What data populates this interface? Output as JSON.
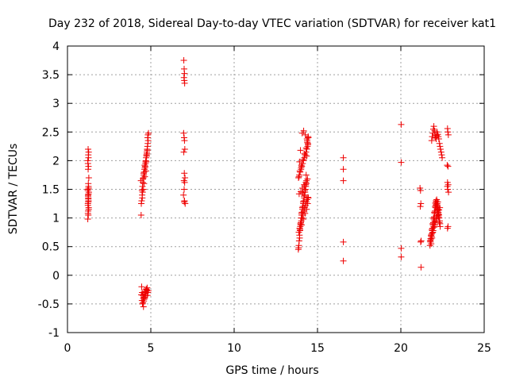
{
  "chart_data": {
    "type": "scatter",
    "title": "Day 232 of 2018, Sidereal Day-to-day VTEC variation (SDTVAR) for receiver kat1",
    "xlabel": "GPS time / hours",
    "ylabel": "SDTVAR / TECUs",
    "xlim": [
      0,
      25
    ],
    "ylim": [
      -1,
      4
    ],
    "x_ticks": [
      0,
      5,
      10,
      15,
      20,
      25
    ],
    "y_ticks": [
      -1,
      -0.5,
      0,
      0.5,
      1,
      1.5,
      2,
      2.5,
      3,
      3.5,
      4
    ],
    "x_tick_labels": [
      "0",
      "5",
      "10",
      "15",
      "20",
      "25"
    ],
    "y_tick_labels": [
      "-1",
      "-0.5",
      "0",
      "0.5",
      "1",
      "1.5",
      "2",
      "2.5",
      "3",
      "3.5",
      "4"
    ],
    "grid": true,
    "marker": "plus",
    "color": "#ee0000",
    "series": [
      {
        "name": "SDTVAR",
        "x": [
          1.22,
          1.25,
          1.24,
          1.27,
          1.23,
          1.26,
          1.25,
          1.24,
          1.28,
          1.22,
          1.26,
          1.25,
          1.23,
          1.27,
          1.24,
          1.26,
          1.22,
          1.25,
          1.28,
          1.24,
          1.23,
          1.26,
          1.25,
          1.27,
          1.24,
          1.22,
          1.26,
          1.25,
          1.23,
          1.27,
          4.42,
          4.45,
          4.48,
          4.5,
          4.52,
          4.47,
          4.55,
          4.58,
          4.53,
          4.6,
          4.62,
          4.57,
          4.65,
          4.63,
          4.68,
          4.7,
          4.66,
          4.72,
          4.74,
          4.69,
          4.76,
          4.78,
          4.75,
          4.8,
          4.82,
          4.79,
          4.84,
          4.81,
          4.77,
          4.83,
          4.86,
          4.73,
          4.71,
          4.64,
          4.59,
          4.56,
          4.51,
          4.49,
          4.43,
          4.41,
          4.45,
          4.48,
          4.52,
          4.55,
          4.58,
          4.62,
          4.66,
          4.7,
          4.74,
          4.78,
          4.82,
          4.5,
          4.6,
          4.68,
          4.76,
          4.56,
          4.64,
          4.72,
          4.8,
          4.53,
          4.61,
          4.69,
          4.47,
          4.85,
          4.43,
          6.98,
          7.0,
          7.02,
          6.99,
          7.01,
          7.03,
          6.97,
          7.0,
          7.02,
          7.04,
          6.98,
          7.01,
          7.05,
          6.99,
          7.03,
          7.0,
          6.96,
          7.02,
          7.06,
          7.01,
          13.85,
          13.88,
          13.9,
          13.92,
          13.95,
          13.97,
          14.0,
          14.02,
          14.05,
          14.07,
          14.1,
          14.12,
          14.15,
          14.18,
          14.2,
          14.23,
          14.25,
          14.28,
          14.3,
          14.33,
          13.87,
          13.93,
          13.99,
          14.04,
          14.09,
          14.14,
          14.19,
          14.24,
          14.29,
          14.34,
          13.86,
          13.91,
          13.96,
          14.01,
          14.06,
          14.11,
          14.16,
          14.21,
          14.26,
          14.31,
          14.36,
          14.4,
          14.42,
          14.38,
          14.45,
          13.89,
          13.94,
          14.03,
          14.13,
          14.22,
          14.32,
          14.39,
          14.44,
          14.08,
          14.17,
          14.27,
          14.37,
          14.43,
          13.98,
          14.35,
          13.88,
          13.93,
          13.98,
          14.03,
          14.08,
          14.13,
          14.18,
          14.23,
          14.28,
          14.33,
          14.38,
          14.43,
          13.9,
          14.0,
          14.1,
          14.2,
          14.3,
          14.4,
          13.95,
          14.05,
          14.15,
          14.25,
          14.35,
          14.41,
          14.45,
          14.12,
          14.22,
          14.32,
          14.02,
          13.92,
          16.55,
          16.55,
          16.55,
          16.55,
          16.55,
          20.02,
          20.02,
          20.02,
          20.02,
          21.15,
          21.18,
          21.2,
          21.17,
          21.22,
          21.19,
          21.21,
          21.75,
          21.78,
          21.8,
          21.83,
          21.85,
          21.88,
          21.9,
          21.93,
          21.95,
          21.98,
          22.0,
          22.03,
          22.05,
          22.08,
          22.1,
          22.13,
          22.15,
          22.18,
          22.2,
          22.23,
          22.25,
          22.28,
          22.3,
          22.33,
          22.35,
          21.82,
          21.87,
          21.92,
          21.97,
          22.02,
          21.76,
          21.81,
          21.86,
          21.91,
          21.96,
          22.01,
          22.06,
          22.11,
          22.16,
          22.21,
          22.26,
          22.31,
          22.36,
          21.84,
          21.94,
          22.04,
          22.14,
          22.24,
          22.34,
          21.89,
          21.99,
          22.09,
          22.19,
          22.29,
          22.07,
          22.17,
          22.27,
          21.79,
          22.12,
          22.22,
          21.85,
          21.88,
          21.92,
          21.95,
          21.98,
          22.02,
          22.05,
          22.08,
          22.12,
          22.15,
          22.18,
          22.22,
          22.25,
          22.28,
          22.32,
          22.35,
          22.38,
          22.42,
          22.45,
          22.48,
          22.8,
          22.82,
          22.85,
          22.78,
          22.83,
          22.8,
          22.84,
          22.79,
          22.81,
          22.86,
          22.83,
          22.8
        ],
        "y": [
          0.98,
          1.05,
          1.12,
          1.18,
          1.25,
          1.3,
          1.35,
          1.4,
          1.45,
          1.5,
          1.55,
          1.28,
          1.22,
          1.15,
          1.38,
          1.42,
          1.48,
          1.6,
          1.7,
          1.85,
          1.95,
          2.05,
          2.1,
          2.15,
          2.2,
          2.0,
          1.9,
          1.33,
          1.08,
          1.52,
          1.05,
          1.3,
          1.4,
          1.55,
          1.62,
          1.48,
          1.7,
          1.75,
          1.68,
          1.8,
          1.85,
          1.78,
          1.88,
          1.92,
          1.95,
          2.0,
          1.9,
          2.05,
          2.1,
          1.98,
          2.15,
          2.2,
          2.08,
          2.25,
          2.3,
          2.18,
          2.35,
          2.4,
          2.12,
          2.45,
          2.48,
          1.98,
          1.82,
          1.72,
          1.6,
          1.5,
          1.45,
          1.35,
          1.25,
          1.65,
          -0.2,
          -0.3,
          -0.35,
          -0.4,
          -0.45,
          -0.38,
          -0.32,
          -0.28,
          -0.25,
          -0.22,
          -0.3,
          -0.5,
          -0.42,
          -0.36,
          -0.26,
          -0.55,
          -0.33,
          -0.24,
          -0.35,
          -0.48,
          -0.4,
          -0.29,
          -0.44,
          -0.27,
          -0.34,
          3.75,
          3.6,
          3.52,
          3.45,
          3.4,
          3.35,
          2.48,
          2.4,
          2.35,
          2.2,
          2.15,
          1.78,
          1.7,
          1.65,
          1.62,
          1.5,
          1.4,
          1.3,
          1.25,
          1.28,
          0.45,
          0.52,
          0.6,
          0.7,
          0.78,
          0.85,
          0.92,
          1.0,
          1.05,
          1.1,
          1.15,
          1.2,
          1.25,
          1.3,
          1.35,
          1.4,
          1.45,
          1.5,
          1.55,
          1.6,
          0.48,
          0.65,
          0.88,
          1.08,
          1.18,
          1.28,
          1.38,
          1.48,
          1.58,
          1.65,
          1.7,
          1.75,
          1.8,
          1.85,
          1.9,
          1.95,
          2.0,
          2.05,
          2.1,
          2.15,
          2.2,
          2.25,
          2.3,
          2.35,
          2.4,
          1.72,
          1.82,
          1.92,
          2.02,
          2.12,
          2.22,
          2.32,
          2.42,
          2.48,
          2.52,
          2.45,
          2.38,
          2.28,
          2.18,
          2.08,
          0.75,
          0.82,
          0.9,
          0.95,
          1.0,
          1.05,
          1.12,
          1.18,
          1.22,
          1.28,
          1.32,
          1.36,
          1.42,
          1.46,
          1.52,
          1.58,
          1.62,
          1.68,
          0.8,
          0.88,
          0.98,
          1.08,
          1.15,
          1.25,
          1.35,
          1.44,
          1.55,
          1.75,
          1.88,
          1.98,
          2.05,
          1.85,
          1.65,
          0.58,
          0.25,
          2.63,
          1.97,
          0.47,
          0.32,
          1.52,
          1.48,
          1.25,
          1.2,
          0.6,
          0.58,
          0.14,
          0.52,
          0.58,
          0.62,
          0.68,
          0.72,
          0.78,
          0.82,
          0.88,
          0.92,
          0.98,
          1.02,
          1.08,
          1.12,
          1.18,
          1.22,
          1.28,
          1.32,
          1.25,
          1.2,
          1.15,
          1.1,
          1.05,
          1.0,
          0.95,
          0.9,
          0.55,
          0.65,
          0.75,
          0.85,
          0.95,
          0.6,
          0.7,
          0.8,
          0.9,
          1.0,
          1.1,
          1.2,
          1.3,
          1.22,
          1.12,
          1.02,
          0.92,
          0.85,
          0.68,
          0.78,
          0.88,
          0.98,
          1.08,
          1.18,
          0.74,
          0.84,
          0.94,
          1.04,
          1.14,
          1.26,
          1.16,
          1.06,
          0.64,
          1.24,
          1.28,
          2.35,
          2.42,
          2.48,
          2.55,
          2.6,
          2.52,
          2.45,
          2.4,
          2.38,
          2.44,
          2.5,
          2.46,
          2.42,
          2.38,
          2.3,
          2.25,
          2.2,
          2.15,
          2.1,
          2.05,
          2.56,
          2.5,
          2.45,
          1.92,
          1.9,
          1.62,
          1.58,
          1.55,
          1.5,
          1.45,
          0.85,
          0.82
        ]
      }
    ]
  }
}
